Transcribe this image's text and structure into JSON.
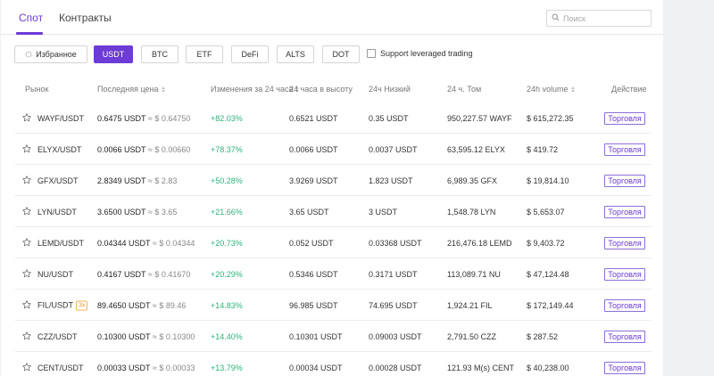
{
  "tabs": [
    {
      "label": "Спот",
      "active": true
    },
    {
      "label": "Контракты",
      "active": false
    }
  ],
  "search": {
    "placeholder": "Поиск",
    "value": ""
  },
  "filters": [
    {
      "label": "Избранное",
      "icon": "star-icon",
      "active": false
    },
    {
      "label": "USDT",
      "active": true
    },
    {
      "label": "BTC",
      "active": false
    },
    {
      "label": "ETF",
      "active": false
    },
    {
      "label": "DeFi",
      "active": false
    },
    {
      "label": "ALTS",
      "active": false
    },
    {
      "label": "DOT",
      "active": false
    }
  ],
  "leveraged": {
    "label": "Support leveraged trading",
    "checked": false
  },
  "columns": {
    "market": "Рынок",
    "last_price": "Последняя цена",
    "change": "Изменения за 24 часа",
    "high": "24 часа в высоту",
    "low": "24ч Низкий",
    "volume_coin": "24 ч. Том",
    "volume_usd": "24h volume",
    "action": "Действие"
  },
  "rows": [
    {
      "pair": "WAYF/USDT",
      "leverage": "",
      "price": "0.6475 USDT",
      "price_usd": "≈ $ 0.64750",
      "change": "+82.03%",
      "high": "0.6521 USDT",
      "low": "0.35 USDT",
      "vol_coin": "950,227.57 WAYF",
      "vol_usd": "$ 615,272.35",
      "action": "Торговля"
    },
    {
      "pair": "ELYX/USDT",
      "leverage": "",
      "price": "0.0066 USDT",
      "price_usd": "≈ $ 0.00660",
      "change": "+78.37%",
      "high": "0.0066 USDT",
      "low": "0.0037 USDT",
      "vol_coin": "63,595.12 ELYX",
      "vol_usd": "$ 419.72",
      "action": "Торговля"
    },
    {
      "pair": "GFX/USDT",
      "leverage": "",
      "price": "2.8349 USDT",
      "price_usd": "≈ $ 2.83",
      "change": "+50.28%",
      "high": "3.9269 USDT",
      "low": "1.823 USDT",
      "vol_coin": "6,989.35 GFX",
      "vol_usd": "$ 19,814.10",
      "action": "Торговля"
    },
    {
      "pair": "LYN/USDT",
      "leverage": "",
      "price": "3.6500 USDT",
      "price_usd": "≈ $ 3.65",
      "change": "+21.66%",
      "high": "3.65 USDT",
      "low": "3 USDT",
      "vol_coin": "1,548.78 LYN",
      "vol_usd": "$ 5,653.07",
      "action": "Торговля"
    },
    {
      "pair": "LEMD/USDT",
      "leverage": "",
      "price": "0.04344 USDT",
      "price_usd": "≈ $ 0.04344",
      "change": "+20.73%",
      "high": "0.052 USDT",
      "low": "0.03368 USDT",
      "vol_coin": "216,476.18 LEMD",
      "vol_usd": "$ 9,403.72",
      "action": "Торговля"
    },
    {
      "pair": "NU/USDT",
      "leverage": "",
      "price": "0.4167 USDT",
      "price_usd": "≈ $ 0.41670",
      "change": "+20.29%",
      "high": "0.5346 USDT",
      "low": "0.3171 USDT",
      "vol_coin": "113,089.71 NU",
      "vol_usd": "$ 47,124.48",
      "action": "Торговля"
    },
    {
      "pair": "FIL/USDT",
      "leverage": "3x",
      "price": "89.4650 USDT",
      "price_usd": "≈ $ 89.46",
      "change": "+14.83%",
      "high": "96.985 USDT",
      "low": "74.695 USDT",
      "vol_coin": "1,924.21 FIL",
      "vol_usd": "$ 172,149.44",
      "action": "Торговля"
    },
    {
      "pair": "CZZ/USDT",
      "leverage": "",
      "price": "0.10300 USDT",
      "price_usd": "≈ $ 0.10300",
      "change": "+14.40%",
      "high": "0.10301 USDT",
      "low": "0.09003 USDT",
      "vol_coin": "2,791.50 CZZ",
      "vol_usd": "$ 287.52",
      "action": "Торговля"
    },
    {
      "pair": "CENT/USDT",
      "leverage": "",
      "price": "0.00033 USDT",
      "price_usd": "≈ $ 0.00033",
      "change": "+13.79%",
      "high": "0.00034 USDT",
      "low": "0.00028 USDT",
      "vol_coin": "121.93 M(s) CENT",
      "vol_usd": "$ 40,238.00",
      "action": "Торговля"
    }
  ],
  "colors": {
    "accent": "#6d3bd6",
    "positive": "#2eb37a"
  }
}
